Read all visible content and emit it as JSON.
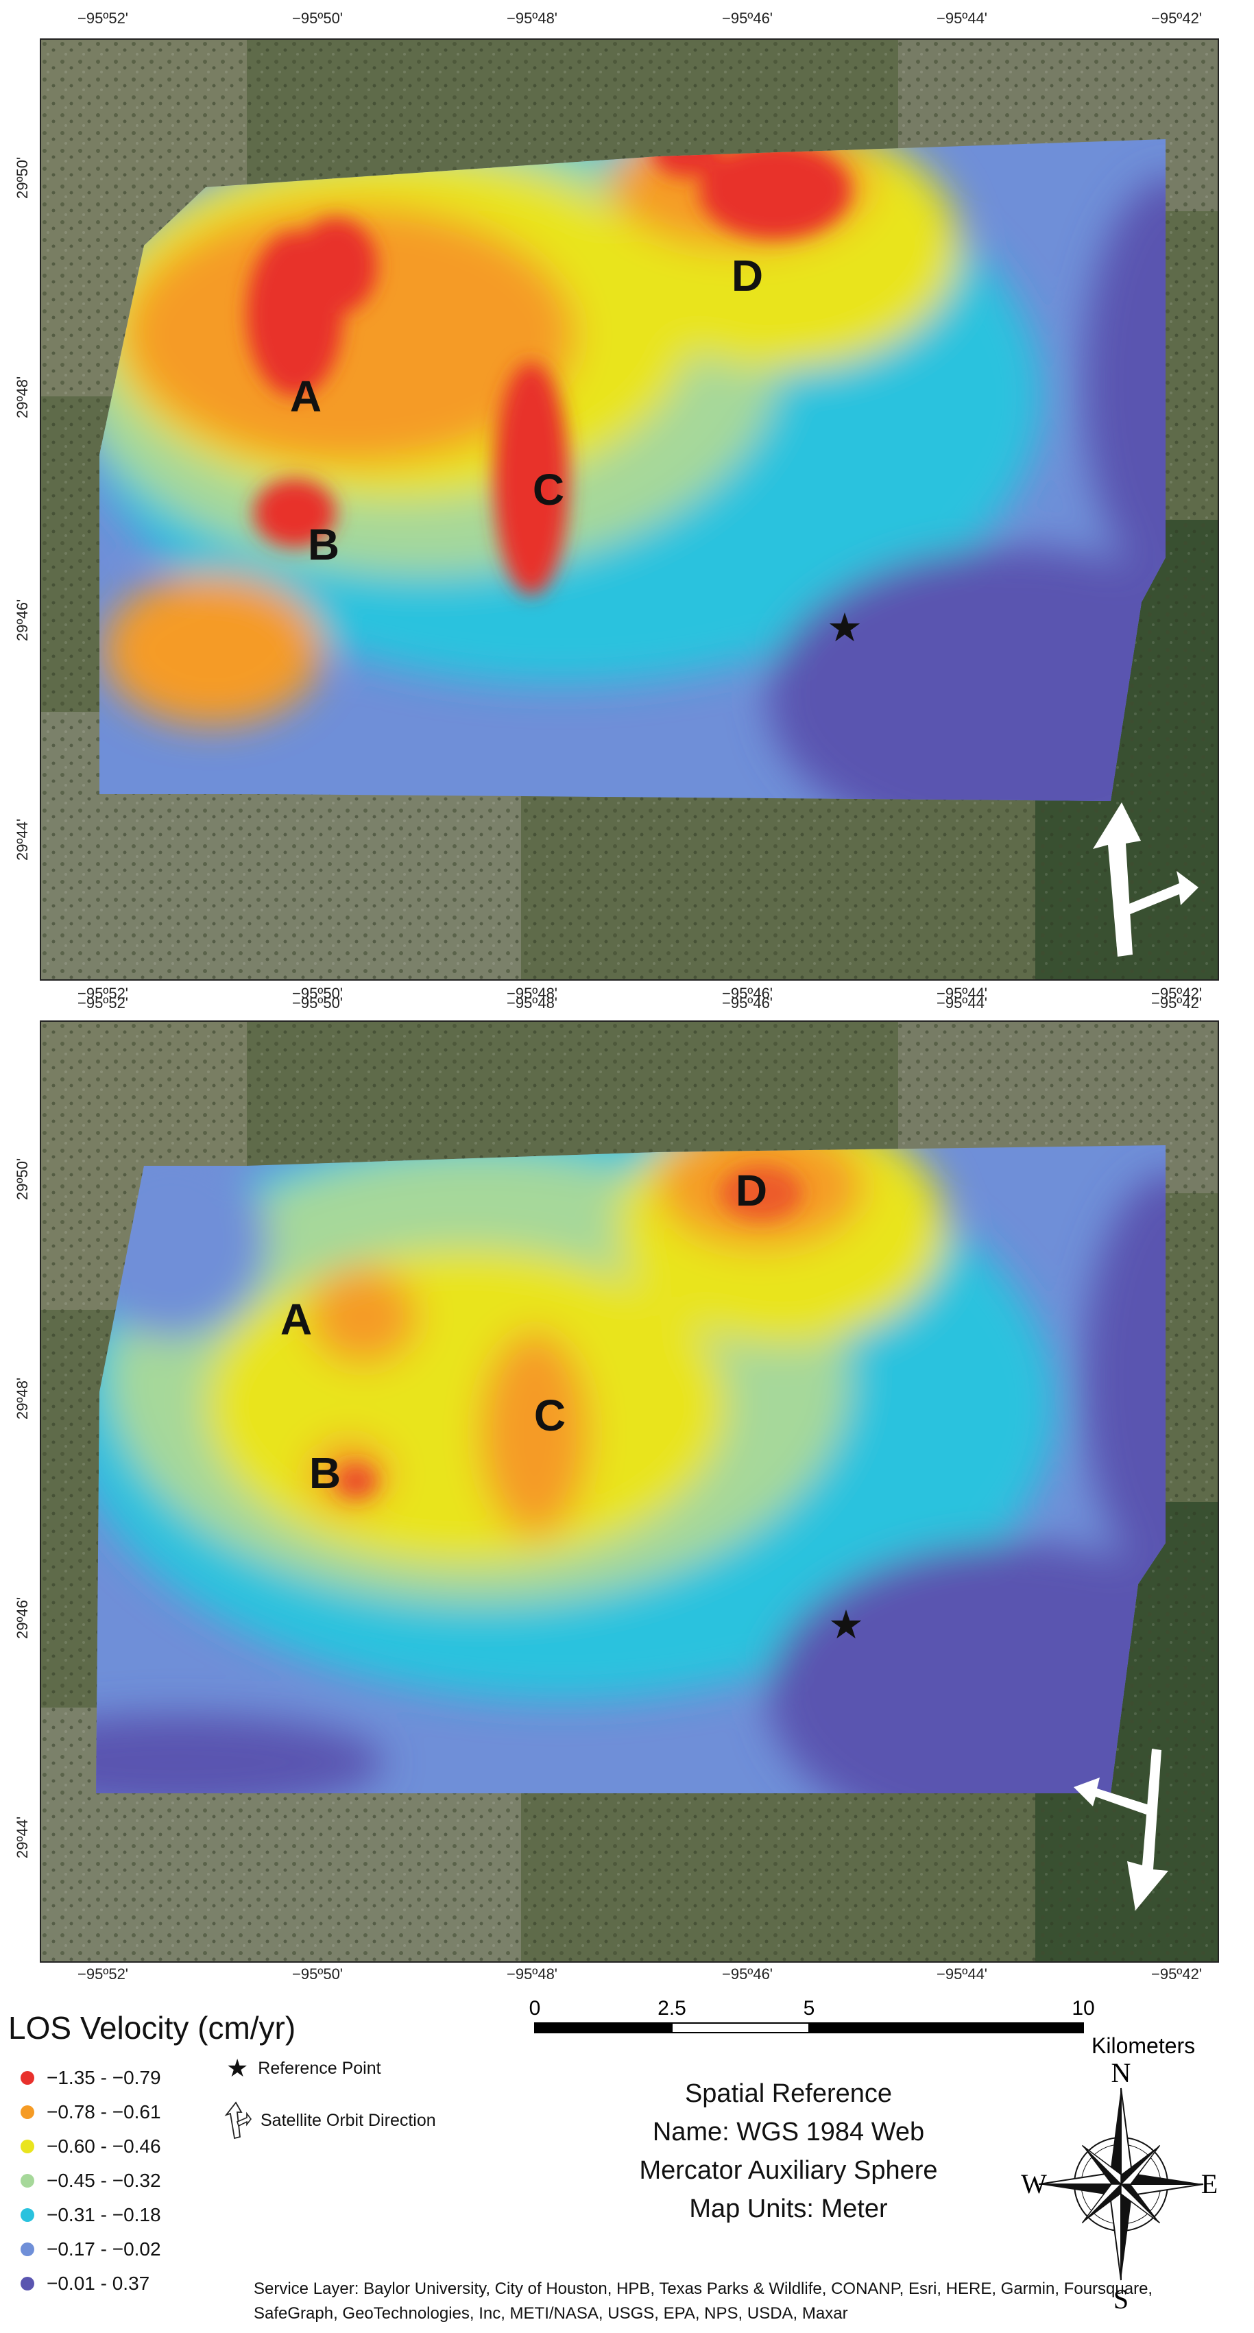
{
  "colors": {
    "class1": "#e8312c",
    "class2": "#f59b25",
    "class3": "#e9e41e",
    "class4": "#a6d89a",
    "class5": "#29c2de",
    "class6": "#6f8fd8",
    "class7": "#5a55b0"
  },
  "axes": {
    "lon_ticks": [
      "−95º52'",
      "−95º50'",
      "−95º48'",
      "−95º46'",
      "−95º44'",
      "−95º42'"
    ],
    "lat_ticks": [
      "29º50'",
      "29º48'",
      "29º46'",
      "29º44'"
    ]
  },
  "top_map": {
    "sites": [
      "A",
      "B",
      "C",
      "D"
    ]
  },
  "bottom_map": {
    "sites": [
      "A",
      "B",
      "C",
      "D"
    ]
  },
  "legend": {
    "title": "LOS Velocity (cm/yr)",
    "classes": [
      {
        "label": "−1.35 - −0.79",
        "color_key": "class1"
      },
      {
        "label": "−0.78 - −0.61",
        "color_key": "class2"
      },
      {
        "label": "−0.60 - −0.46",
        "color_key": "class3"
      },
      {
        "label": "−0.45 - −0.32",
        "color_key": "class4"
      },
      {
        "label": "−0.31 - −0.18",
        "color_key": "class5"
      },
      {
        "label": "−0.17 - −0.02",
        "color_key": "class6"
      },
      {
        "label": "−0.01 -  0.37",
        "color_key": "class7"
      }
    ],
    "symbols": {
      "reference_point": "Reference Point",
      "orbit_direction": "Satellite Orbit Direction"
    }
  },
  "scale": {
    "ticks": [
      "0",
      "2.5",
      "5",
      "10"
    ],
    "unit": "Kilometers"
  },
  "spatial_reference": {
    "line1": "Spatial Reference",
    "line2": "Name: WGS 1984 Web",
    "line3": "Mercator Auxiliary Sphere",
    "line4": "Map Units: Meter"
  },
  "compass": {
    "n": "N",
    "s": "S",
    "e": "E",
    "w": "W"
  },
  "credits": "Service Layer: Baylor University, City of Houston, HPB, Texas Parks & Wildlife, CONANP, Esri, HERE, Garmin, Foursquare, SafeGraph, GeoTechnologies, Inc, METI/NASA, USGS, EPA, NPS, USDA, Maxar"
}
